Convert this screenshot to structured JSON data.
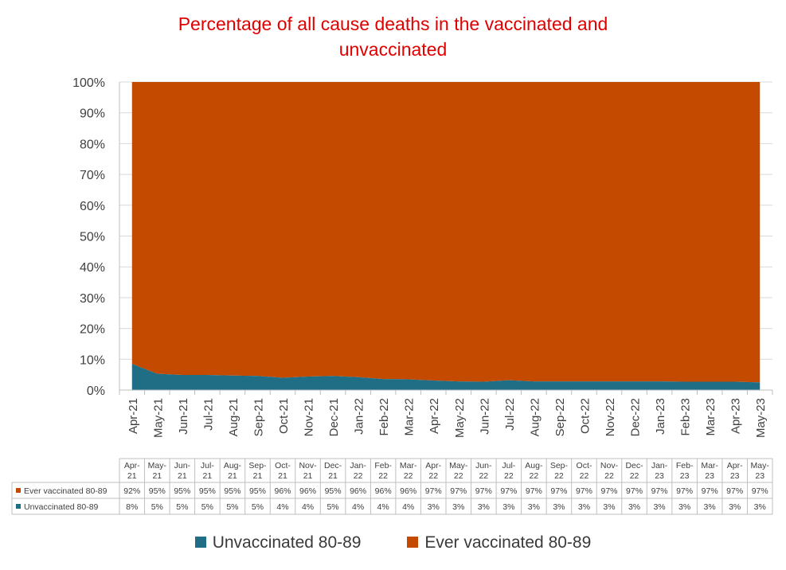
{
  "chart_data": {
    "type": "area",
    "stacked": "percent",
    "title_lines": [
      "Percentage of all cause deaths in the vaccinated and",
      "unvaccinated"
    ],
    "title": "Percentage of all cause deaths in the vaccinated and unvaccinated",
    "categories": [
      "Apr-21",
      "May-21",
      "Jun-21",
      "Jul-21",
      "Aug-21",
      "Sep-21",
      "Oct-21",
      "Nov-21",
      "Dec-21",
      "Jan-22",
      "Feb-22",
      "Mar-22",
      "Apr-22",
      "May-22",
      "Jun-22",
      "Jul-22",
      "Aug-22",
      "Sep-22",
      "Oct-22",
      "Nov-22",
      "Dec-22",
      "Jan-23",
      "Feb-23",
      "Mar-23",
      "Apr-23",
      "May-23"
    ],
    "yticks": [
      "0%",
      "10%",
      "20%",
      "30%",
      "40%",
      "50%",
      "60%",
      "70%",
      "80%",
      "90%",
      "100%"
    ],
    "ylim": [
      0,
      100
    ],
    "grid": true,
    "legend_position": "bottom",
    "series": [
      {
        "name": "Unvaccinated 80-89",
        "color": "#1f6e86",
        "values": [
          8.5,
          5.3,
          4.9,
          4.9,
          4.7,
          4.6,
          4.0,
          4.4,
          4.6,
          4.2,
          3.6,
          3.5,
          3.1,
          2.8,
          2.7,
          3.2,
          2.8,
          2.8,
          2.8,
          2.8,
          2.8,
          2.8,
          2.7,
          2.7,
          2.7,
          2.5
        ],
        "labels": [
          "8%",
          "5%",
          "5%",
          "5%",
          "5%",
          "5%",
          "4%",
          "4%",
          "5%",
          "4%",
          "4%",
          "4%",
          "3%",
          "3%",
          "3%",
          "3%",
          "3%",
          "3%",
          "3%",
          "3%",
          "3%",
          "3%",
          "3%",
          "3%",
          "3%",
          "3%"
        ]
      },
      {
        "name": "Ever vaccinated 80-89",
        "color": "#c44a00",
        "values": [
          91.5,
          94.7,
          95.1,
          95.1,
          95.3,
          95.4,
          96.0,
          95.6,
          95.4,
          95.8,
          96.4,
          96.5,
          96.9,
          97.2,
          97.3,
          96.8,
          97.2,
          97.2,
          97.2,
          97.2,
          97.2,
          97.2,
          97.3,
          97.3,
          97.3,
          97.5
        ],
        "labels": [
          "92%",
          "95%",
          "95%",
          "95%",
          "95%",
          "95%",
          "96%",
          "96%",
          "95%",
          "96%",
          "96%",
          "96%",
          "97%",
          "97%",
          "97%",
          "97%",
          "97%",
          "97%",
          "97%",
          "97%",
          "97%",
          "97%",
          "97%",
          "97%",
          "97%",
          "97%"
        ]
      }
    ],
    "table": {
      "header_lines": [
        [
          "Apr-",
          "21"
        ],
        [
          "May-",
          "21"
        ],
        [
          "Jun-",
          "21"
        ],
        [
          "Jul-",
          "21"
        ],
        [
          "Aug-",
          "21"
        ],
        [
          "Sep-",
          "21"
        ],
        [
          "Oct-",
          "21"
        ],
        [
          "Nov-",
          "21"
        ],
        [
          "Dec-",
          "21"
        ],
        [
          "Jan-",
          "22"
        ],
        [
          "Feb-",
          "22"
        ],
        [
          "Mar-",
          "22"
        ],
        [
          "Apr-",
          "22"
        ],
        [
          "May-",
          "22"
        ],
        [
          "Jun-",
          "22"
        ],
        [
          "Jul-",
          "22"
        ],
        [
          "Aug-",
          "22"
        ],
        [
          "Sep-",
          "22"
        ],
        [
          "Oct-",
          "22"
        ],
        [
          "Nov-",
          "22"
        ],
        [
          "Dec-",
          "22"
        ],
        [
          "Jan-",
          "23"
        ],
        [
          "Feb-",
          "23"
        ],
        [
          "Mar-",
          "23"
        ],
        [
          "Apr-",
          "23"
        ],
        [
          "May-",
          "23"
        ]
      ],
      "row_order": [
        "Ever vaccinated 80-89",
        "Unvaccinated 80-89"
      ]
    },
    "legend": [
      "Unvaccinated 80-89",
      "Ever vaccinated 80-89"
    ]
  }
}
